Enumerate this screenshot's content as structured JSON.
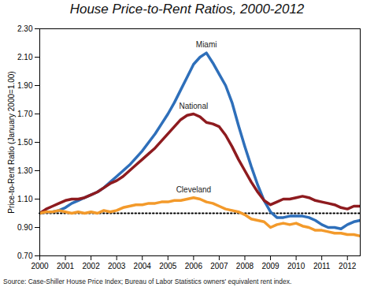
{
  "chart_data": {
    "type": "line",
    "title": "House Price-to-Rent Ratios, 2000-2012",
    "y_label": "Price-to-Rent Ratio (January 2000=1.00)",
    "source": "Source: Case-Shiller House Price Index; Bureau of Labor Statistics owners' equivalent rent index.",
    "x": [
      2000,
      2000.25,
      2000.5,
      2000.75,
      2001,
      2001.25,
      2001.5,
      2001.75,
      2002,
      2002.25,
      2002.5,
      2002.75,
      2003,
      2003.25,
      2003.5,
      2003.75,
      2004,
      2004.25,
      2004.5,
      2004.75,
      2005,
      2005.25,
      2005.5,
      2005.75,
      2006,
      2006.25,
      2006.5,
      2006.75,
      2007,
      2007.25,
      2007.5,
      2007.75,
      2008,
      2008.25,
      2008.5,
      2008.75,
      2009,
      2009.25,
      2009.5,
      2009.75,
      2010,
      2010.25,
      2010.5,
      2010.75,
      2011,
      2011.25,
      2011.5,
      2011.75,
      2012,
      2012.25,
      2012.5
    ],
    "series": [
      {
        "name": "Miami",
        "color": "#2e6fba",
        "values": [
          1.0,
          1.01,
          1.01,
          1.02,
          1.04,
          1.07,
          1.09,
          1.11,
          1.13,
          1.15,
          1.18,
          1.22,
          1.26,
          1.3,
          1.34,
          1.39,
          1.44,
          1.5,
          1.56,
          1.63,
          1.7,
          1.78,
          1.87,
          1.96,
          2.05,
          2.1,
          2.13,
          2.06,
          1.98,
          1.9,
          1.78,
          1.62,
          1.47,
          1.33,
          1.2,
          1.09,
          1.01,
          0.97,
          0.97,
          0.98,
          0.98,
          0.98,
          0.97,
          0.95,
          0.92,
          0.9,
          0.9,
          0.89,
          0.92,
          0.94,
          0.95
        ]
      },
      {
        "name": "National",
        "color": "#8e1b1f",
        "values": [
          1.0,
          1.03,
          1.05,
          1.07,
          1.09,
          1.1,
          1.1,
          1.11,
          1.13,
          1.15,
          1.18,
          1.21,
          1.23,
          1.26,
          1.3,
          1.34,
          1.38,
          1.42,
          1.46,
          1.51,
          1.56,
          1.61,
          1.66,
          1.69,
          1.7,
          1.68,
          1.64,
          1.63,
          1.61,
          1.55,
          1.47,
          1.38,
          1.3,
          1.22,
          1.15,
          1.09,
          1.06,
          1.08,
          1.1,
          1.1,
          1.11,
          1.12,
          1.11,
          1.09,
          1.08,
          1.07,
          1.06,
          1.04,
          1.03,
          1.05,
          1.05
        ]
      },
      {
        "name": "Cleveland",
        "color": "#f39a2b",
        "values": [
          1.0,
          1.01,
          1.01,
          1.02,
          1.01,
          1.0,
          1.01,
          1.0,
          1.01,
          1.0,
          1.02,
          1.01,
          1.02,
          1.04,
          1.05,
          1.06,
          1.06,
          1.07,
          1.07,
          1.08,
          1.08,
          1.09,
          1.09,
          1.1,
          1.11,
          1.1,
          1.08,
          1.07,
          1.05,
          1.03,
          1.02,
          1.01,
          0.99,
          0.96,
          0.95,
          0.94,
          0.9,
          0.92,
          0.93,
          0.92,
          0.93,
          0.91,
          0.9,
          0.88,
          0.88,
          0.87,
          0.86,
          0.86,
          0.85,
          0.85,
          0.84
        ]
      }
    ],
    "reference_line": 1,
    "xlim": [
      2000,
      2012.5
    ],
    "xticks": [
      2000,
      2001,
      2002,
      2003,
      2004,
      2005,
      2006,
      2007,
      2008,
      2009,
      2010,
      2011,
      2012
    ],
    "ylim": [
      0.7,
      2.3
    ],
    "yticks": [
      {
        "value": 0.7,
        "label": "0.70"
      },
      {
        "value": 0.9,
        "label": "0.90"
      },
      {
        "value": 1.1,
        "label": "1.10"
      },
      {
        "value": 1.3,
        "label": "1.30"
      },
      {
        "value": 1.5,
        "label": "1.50"
      },
      {
        "value": 1.7,
        "label": "1.70"
      },
      {
        "value": 1.9,
        "label": "1.90"
      },
      {
        "value": 2.1,
        "label": "2.10"
      },
      {
        "value": 2.3,
        "label": "2.30"
      }
    ],
    "grid": false
  }
}
